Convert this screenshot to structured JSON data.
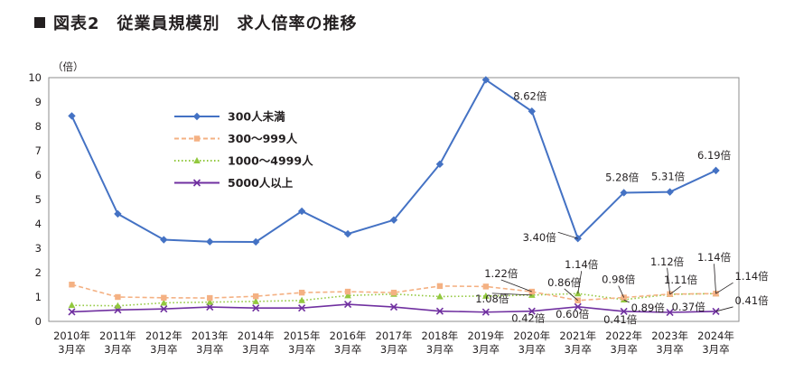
{
  "header": {
    "title": "図表2　従業員規模別　求人倍率の推移"
  },
  "chart_data": {
    "type": "line",
    "ylabel": "（倍）",
    "ylim": [
      0,
      10
    ],
    "yticks": [
      "0",
      "1",
      "2",
      "3",
      "4",
      "5",
      "6",
      "7",
      "8",
      "9",
      "10"
    ],
    "categories": [
      [
        "2010年",
        "3月卒"
      ],
      [
        "2011年",
        "3月卒"
      ],
      [
        "2012年",
        "3月卒"
      ],
      [
        "2013年",
        "3月卒"
      ],
      [
        "2014年",
        "3月卒"
      ],
      [
        "2015年",
        "3月卒"
      ],
      [
        "2016年",
        "3月卒"
      ],
      [
        "2017年",
        "3月卒"
      ],
      [
        "2018年",
        "3月卒"
      ],
      [
        "2019年",
        "3月卒"
      ],
      [
        "2020年",
        "3月卒"
      ],
      [
        "2021年",
        "3月卒"
      ],
      [
        "2022年",
        "3月卒"
      ],
      [
        "2023年",
        "3月卒"
      ],
      [
        "2024年",
        "3月卒"
      ]
    ],
    "legend_position": "upper-left",
    "series": [
      {
        "name": "300人未満",
        "color": "#4472c4",
        "marker": "diamond",
        "dash": "solid",
        "values": [
          8.43,
          4.41,
          3.35,
          3.27,
          3.26,
          4.52,
          3.59,
          4.16,
          6.45,
          9.91,
          8.62,
          3.4,
          5.28,
          5.31,
          6.19
        ]
      },
      {
        "name": "300～999人",
        "color": "#f4b183",
        "marker": "square",
        "dash": "dashed",
        "values": [
          1.51,
          1.0,
          0.97,
          0.96,
          1.03,
          1.18,
          1.22,
          1.18,
          1.45,
          1.43,
          1.22,
          0.86,
          0.98,
          1.12,
          1.14
        ]
      },
      {
        "name": "1000～4999人",
        "color": "#92c83e",
        "marker": "triangle",
        "dash": "dotted",
        "values": [
          0.66,
          0.64,
          0.76,
          0.79,
          0.82,
          0.86,
          1.06,
          1.12,
          1.02,
          1.04,
          1.08,
          1.14,
          0.89,
          1.11,
          1.14
        ]
      },
      {
        "name": "5000人以上",
        "color": "#7030a0",
        "marker": "x",
        "dash": "solid",
        "values": [
          0.39,
          0.47,
          0.51,
          0.59,
          0.55,
          0.55,
          0.7,
          0.59,
          0.42,
          0.38,
          0.42,
          0.6,
          0.41,
          0.37,
          0.41
        ]
      }
    ],
    "annotations": [
      {
        "text": "8.62倍",
        "series": 0,
        "index": 10
      },
      {
        "text": "3.40倍",
        "series": 0,
        "index": 11
      },
      {
        "text": "5.28倍",
        "series": 0,
        "index": 12
      },
      {
        "text": "5.31倍",
        "series": 0,
        "index": 13
      },
      {
        "text": "6.19倍",
        "series": 0,
        "index": 14
      },
      {
        "text": "1.22倍",
        "series": 1,
        "index": 10
      },
      {
        "text": "0.86倍",
        "series": 1,
        "index": 11
      },
      {
        "text": "0.98倍",
        "series": 1,
        "index": 12
      },
      {
        "text": "1.12倍",
        "series": 1,
        "index": 13
      },
      {
        "text": "1.14倍",
        "series": 1,
        "index": 14
      },
      {
        "text": "1.08倍",
        "series": 2,
        "index": 10
      },
      {
        "text": "1.14倍",
        "series": 2,
        "index": 11
      },
      {
        "text": "0.89倍",
        "series": 2,
        "index": 12
      },
      {
        "text": "1.11倍",
        "series": 2,
        "index": 13
      },
      {
        "text": "1.14倍",
        "series": 2,
        "index": 14
      },
      {
        "text": "0.42倍",
        "series": 3,
        "index": 10
      },
      {
        "text": "0.60倍",
        "series": 3,
        "index": 11
      },
      {
        "text": "0.41倍",
        "series": 3,
        "index": 12
      },
      {
        "text": "0.37倍",
        "series": 3,
        "index": 13
      },
      {
        "text": "0.41倍",
        "series": 3,
        "index": 14
      }
    ]
  }
}
